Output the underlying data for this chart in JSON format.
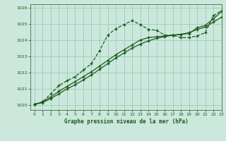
{
  "title": "Graphe pression niveau de la mer (hPa)",
  "bg_color": "#cce8dd",
  "grid_color": "#99ccbb",
  "line_color": "#1a5c1a",
  "xlim": [
    -0.5,
    23
  ],
  "ylim": [
    1019.7,
    1026.2
  ],
  "yticks": [
    1020,
    1021,
    1022,
    1023,
    1024,
    1025,
    1026
  ],
  "xticks": [
    0,
    1,
    2,
    3,
    4,
    5,
    6,
    7,
    8,
    9,
    10,
    11,
    12,
    13,
    14,
    15,
    16,
    17,
    18,
    19,
    20,
    21,
    22,
    23
  ],
  "series1_x": [
    0,
    1,
    2,
    3,
    4,
    5,
    6,
    7,
    8,
    9,
    10,
    11,
    12,
    13,
    14,
    15,
    16,
    17,
    18,
    19,
    20,
    21,
    22,
    23
  ],
  "series1_y": [
    1020.05,
    1020.2,
    1020.7,
    1021.2,
    1021.5,
    1021.75,
    1022.15,
    1022.55,
    1023.35,
    1024.3,
    1024.7,
    1024.95,
    1025.2,
    1024.95,
    1024.65,
    1024.6,
    1024.3,
    1024.3,
    1024.15,
    1024.15,
    1024.25,
    1024.45,
    1025.5,
    1025.8
  ],
  "series2_x": [
    0,
    1,
    2,
    3,
    4,
    5,
    6,
    7,
    8,
    9,
    10,
    11,
    12,
    13,
    14,
    15,
    16,
    17,
    18,
    19,
    20,
    21,
    22,
    23
  ],
  "series2_y": [
    1020.05,
    1020.15,
    1020.4,
    1020.7,
    1021.0,
    1021.25,
    1021.55,
    1021.85,
    1022.2,
    1022.55,
    1022.9,
    1023.2,
    1023.5,
    1023.75,
    1023.95,
    1024.1,
    1024.2,
    1024.3,
    1024.35,
    1024.45,
    1024.65,
    1024.8,
    1025.1,
    1025.4
  ],
  "series3_x": [
    0,
    1,
    2,
    3,
    4,
    5,
    6,
    7,
    8,
    9,
    10,
    11,
    12,
    13,
    14,
    15,
    16,
    17,
    18,
    19,
    20,
    21,
    22,
    23
  ],
  "series3_y": [
    1020.05,
    1020.2,
    1020.5,
    1020.85,
    1021.15,
    1021.45,
    1021.75,
    1022.05,
    1022.4,
    1022.75,
    1023.1,
    1023.4,
    1023.7,
    1024.0,
    1024.15,
    1024.2,
    1024.25,
    1024.3,
    1024.35,
    1024.4,
    1024.75,
    1024.9,
    1025.3,
    1025.75
  ]
}
